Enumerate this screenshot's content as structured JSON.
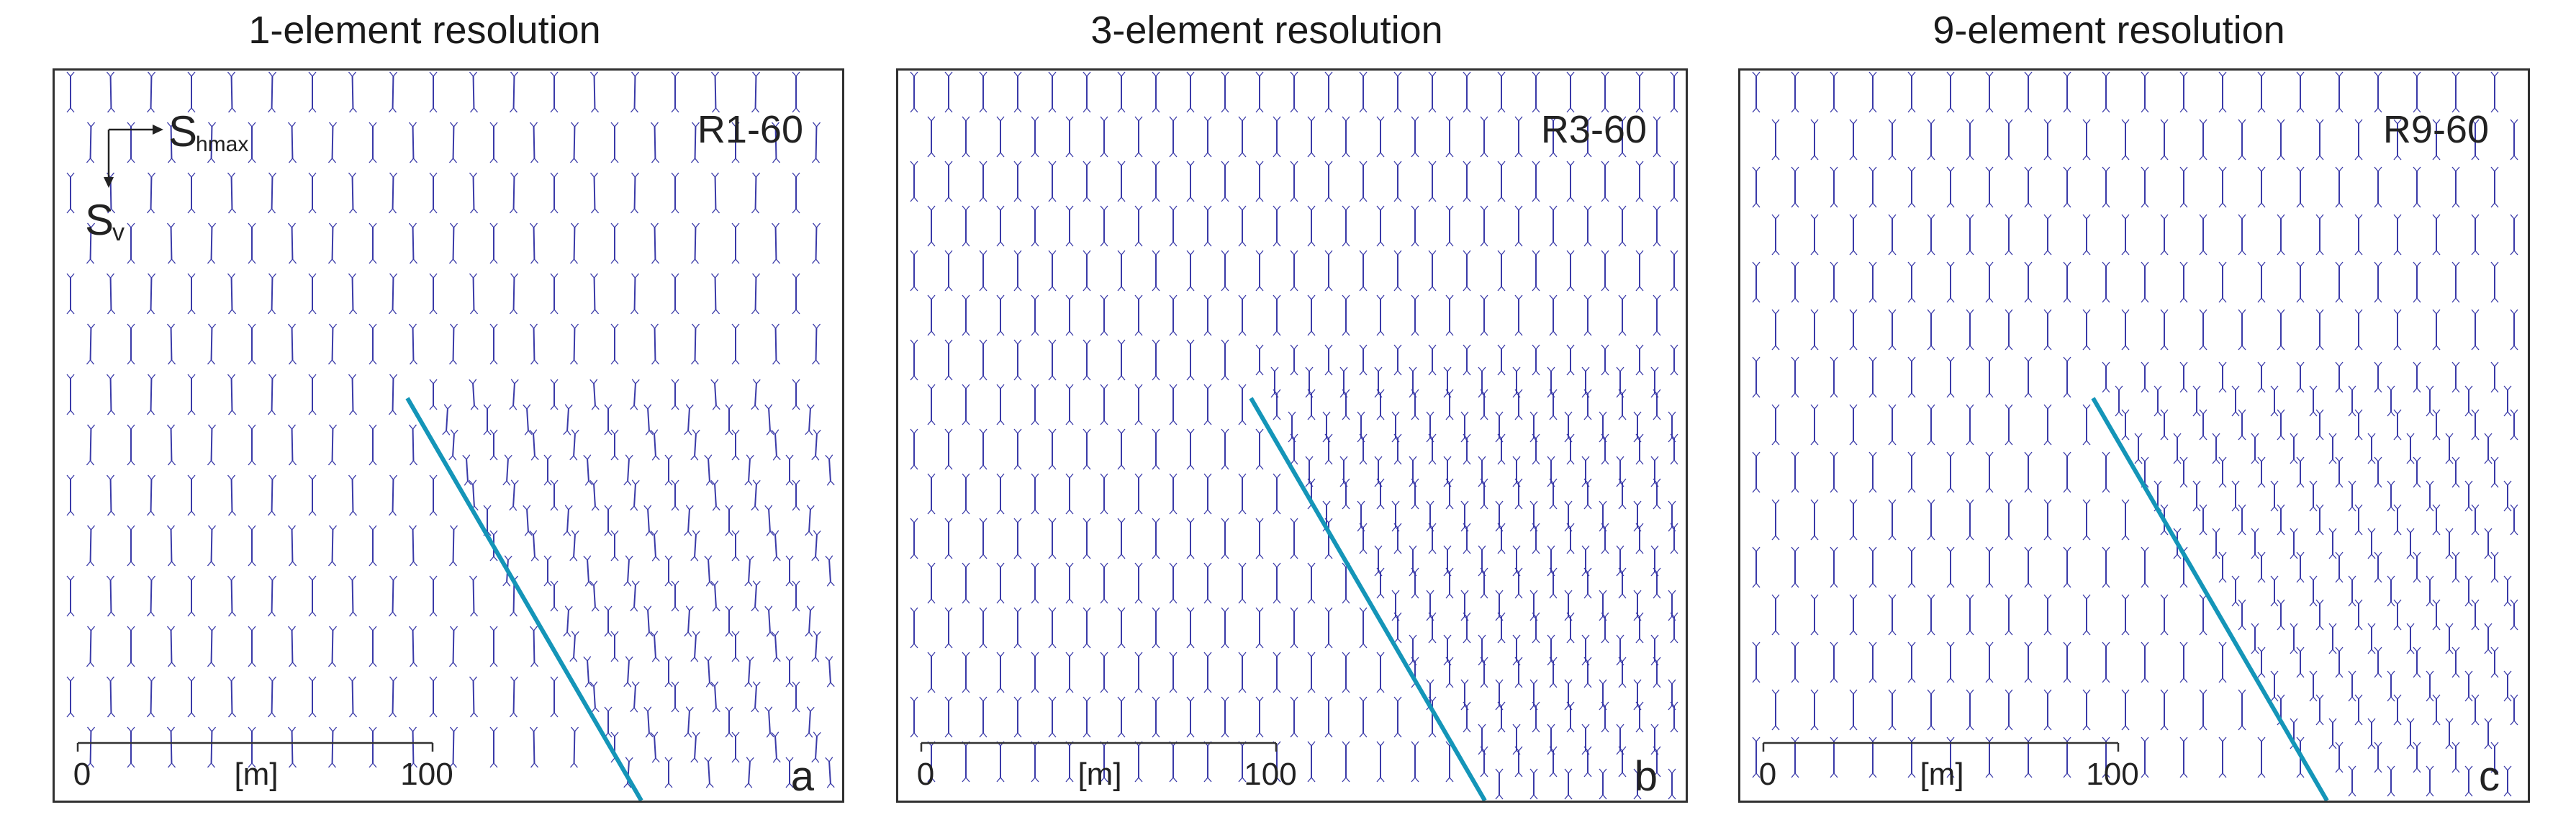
{
  "panels": [
    {
      "title": "1-element resolution",
      "model_id": "R1-60",
      "panel_letter": "a",
      "scale_bar": {
        "start_label": "0",
        "unit_label": "[m]",
        "end_label": "100"
      }
    },
    {
      "title": "3-element resolution",
      "model_id": "R3-60",
      "panel_letter": "b",
      "scale_bar": {
        "start_label": "0",
        "unit_label": "[m]",
        "end_label": "100"
      }
    },
    {
      "title": "9-element resolution",
      "model_id": "R9-60",
      "panel_letter": "c",
      "scale_bar": {
        "start_label": "0",
        "unit_label": "[m]",
        "end_label": "100"
      }
    }
  ],
  "legend": {
    "horizontal_stress_symbol": "S",
    "horizontal_stress_subscript": "hmax",
    "vertical_stress_symbol": "S",
    "vertical_stress_subscript": "v"
  },
  "colors": {
    "stress_glyph": "#3a3aa8",
    "fault_trace": "#1495b8",
    "frame": "#303030",
    "text": "#222222"
  }
}
